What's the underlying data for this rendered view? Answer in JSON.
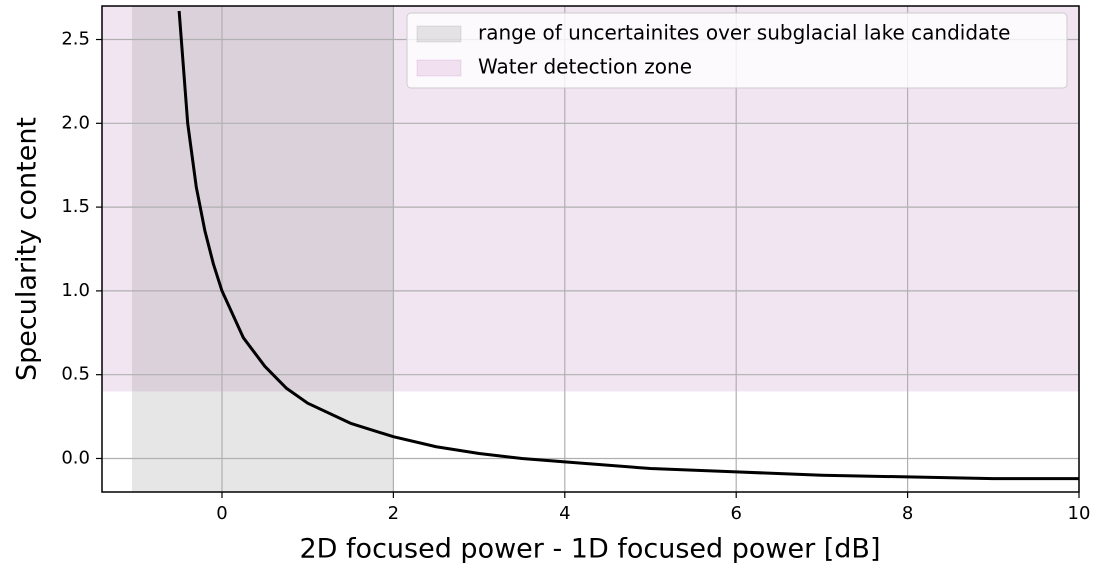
{
  "chart_data": {
    "type": "line",
    "xlabel": "2D focused power - 1D focused power [dB]",
    "ylabel": "Specularity content",
    "x": [
      -0.5,
      -0.4,
      -0.3,
      -0.2,
      -0.1,
      0,
      0.25,
      0.5,
      0.75,
      1,
      1.5,
      2,
      2.5,
      3,
      3.5,
      4,
      5,
      6,
      7,
      8,
      9,
      10
    ],
    "values": [
      2.67,
      2.0,
      1.62,
      1.36,
      1.16,
      1.0,
      0.72,
      0.55,
      0.42,
      0.33,
      0.21,
      0.13,
      0.07,
      0.03,
      0.0,
      -0.02,
      -0.06,
      -0.08,
      -0.1,
      -0.11,
      -0.12,
      -0.12
    ],
    "color": "#000000",
    "spans": [
      {
        "name": "range of uncertainites over subglacial lake candidate",
        "axis": "x",
        "range": [
          -1.05,
          2
        ],
        "color": "#808080"
      },
      {
        "name": "Water detection zone",
        "axis": "y",
        "range": [
          0.4,
          2.7
        ],
        "color": "#800080"
      }
    ],
    "xlim": [
      -1.4,
      10
    ],
    "xticks": [
      0,
      2,
      4,
      6,
      8,
      10
    ],
    "ylim": [
      -0.2,
      2.7
    ],
    "yticks": [
      {
        "value": 0,
        "label": "0.0"
      },
      0.5,
      {
        "value": 1,
        "label": "1.0"
      },
      1.5,
      {
        "value": 2,
        "label": "2.0"
      },
      2.5
    ],
    "grid": true,
    "legend": "upper right"
  }
}
